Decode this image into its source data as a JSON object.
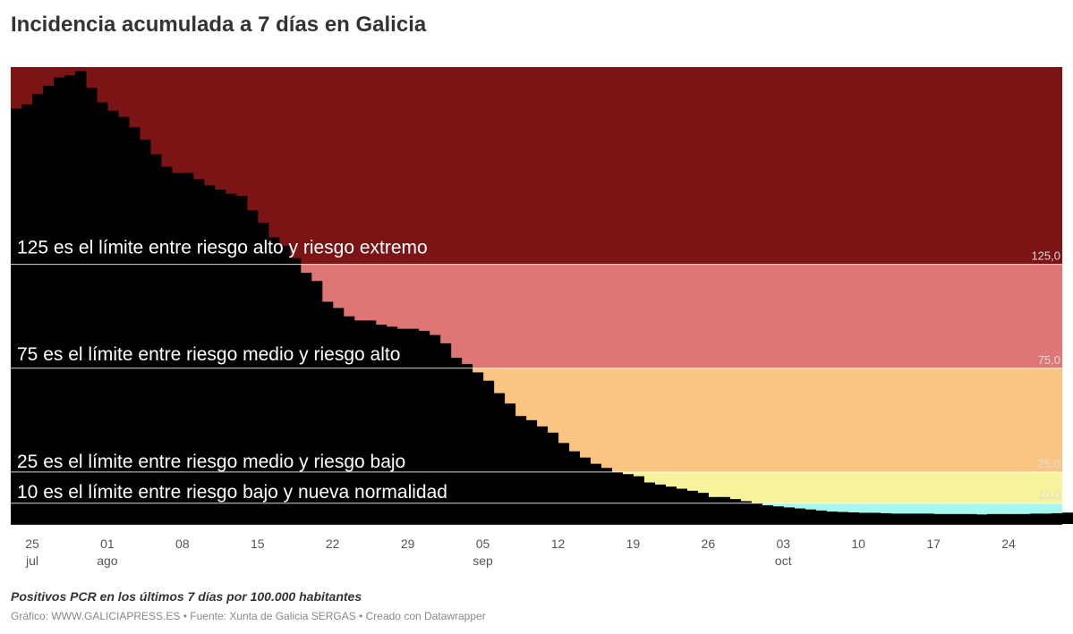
{
  "title": "Incidencia acumulada a 7 días en Galicia",
  "notes": "Positivos PCR en los últimos 7 días por 100.000 habitantes",
  "footer": {
    "chart_label": "Gráfico:",
    "chart_by": "WWW.GALICIAPRESS.ES",
    "separator": "•",
    "source_label": "Fuente:",
    "source": "Xunta de Galicia SERGAS",
    "made_with": "Creado con Datawrapper"
  },
  "colors": {
    "bars": "#000000",
    "zone_extreme": "#7b1414",
    "zone_high": "#de7676",
    "zone_medium": "#fac482",
    "zone_low": "#f6f39c",
    "zone_new_normal": "#a6f7ee",
    "axis_text": "#555555",
    "threshold_value_text": "#dddddd"
  },
  "chart_data": {
    "type": "bar",
    "x_start": "2020-07-23",
    "x_end": "2020-10-29",
    "ylim": [
      0,
      220
    ],
    "grid": false,
    "values": [
      200,
      202,
      207,
      211,
      215,
      216,
      218,
      210,
      203,
      199,
      196,
      191,
      185,
      178,
      172,
      169,
      169,
      166,
      163,
      161,
      159,
      158,
      151,
      145,
      138,
      134,
      128,
      121,
      117,
      107,
      104,
      100,
      98,
      98,
      96,
      95,
      94,
      94,
      93,
      91,
      87,
      80,
      77,
      73,
      69,
      63,
      58,
      52,
      50,
      47,
      44,
      39,
      35,
      32,
      29,
      27,
      25,
      24,
      23,
      20,
      19,
      18,
      17,
      16,
      15,
      13,
      13,
      12,
      11,
      10,
      9,
      8.5,
      8,
      7.5,
      7,
      6.5,
      6,
      5.8,
      5.6,
      5.4,
      5.4,
      5.2,
      5.0,
      5.0,
      5.0,
      5.0,
      4.8,
      4.8,
      4.8,
      4.8,
      4.6,
      4.8,
      4.8,
      4.8,
      4.8,
      5,
      5,
      5.2,
      5.5,
      6
    ],
    "x_ticks": [
      {
        "day": "25",
        "month": "jul",
        "date": "2020-07-25"
      },
      {
        "day": "01",
        "month": "ago",
        "date": "2020-08-01"
      },
      {
        "day": "08",
        "month": "",
        "date": "2020-08-08"
      },
      {
        "day": "15",
        "month": "",
        "date": "2020-08-15"
      },
      {
        "day": "22",
        "month": "",
        "date": "2020-08-22"
      },
      {
        "day": "29",
        "month": "",
        "date": "2020-08-29"
      },
      {
        "day": "05",
        "month": "sep",
        "date": "2020-09-05"
      },
      {
        "day": "12",
        "month": "",
        "date": "2020-09-12"
      },
      {
        "day": "19",
        "month": "",
        "date": "2020-09-19"
      },
      {
        "day": "26",
        "month": "",
        "date": "2020-09-26"
      },
      {
        "day": "03",
        "month": "oct",
        "date": "2020-10-03"
      },
      {
        "day": "10",
        "month": "",
        "date": "2020-10-10"
      },
      {
        "day": "17",
        "month": "",
        "date": "2020-10-17"
      },
      {
        "day": "24",
        "month": "",
        "date": "2020-10-24"
      }
    ],
    "thresholds": [
      {
        "value": 125,
        "label": "125,0",
        "annotation": "125 es el límite entre riesgo alto y riesgo extremo"
      },
      {
        "value": 75,
        "label": "75,0",
        "annotation": "75 es el límite entre riesgo medio y riesgo alto"
      },
      {
        "value": 25,
        "label": "25,0",
        "annotation": "25 es el límite entre riesgo medio y riesgo bajo"
      },
      {
        "value": 10,
        "label": "10,0",
        "annotation": "10 es el límite entre riesgo bajo y nueva normalidad"
      }
    ]
  }
}
